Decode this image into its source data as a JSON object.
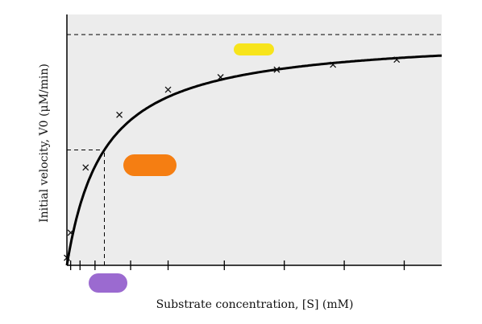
{
  "chart_data": {
    "type": "scatter",
    "title": "",
    "xlabel": "Substrate concentration, [S] (mM)",
    "ylabel": "Initial velocity, V0 (μM/min)",
    "xlim": [
      0,
      1.0
    ],
    "ylim": [
      0,
      1.0
    ],
    "grid": false,
    "legend": "none",
    "x_ticks": [
      0.01,
      0.035,
      0.075,
      0.17,
      0.27,
      0.42,
      0.58,
      0.74,
      0.9
    ],
    "series": [
      {
        "kind": "measured",
        "marker": "x",
        "x": [
          0.0,
          0.01,
          0.05,
          0.14,
          0.27,
          0.41,
          0.56,
          0.71,
          0.88
        ],
        "y": [
          0.03,
          0.13,
          0.39,
          0.6,
          0.7,
          0.75,
          0.78,
          0.8,
          0.82
        ]
      },
      {
        "kind": "fit",
        "model": "michaelis-menten",
        "vmax": 0.92,
        "km": 0.1
      }
    ],
    "reference_lines": [
      {
        "orientation": "horizontal",
        "y": 0.92,
        "style": "dashed"
      },
      {
        "orientation": "horizontal",
        "y": 0.46,
        "style": "dashed",
        "x_end": 0.1
      },
      {
        "orientation": "vertical",
        "x": 0.1,
        "style": "dashed",
        "y_end": 0.46
      }
    ],
    "redactions": [
      {
        "color": "#f7e41b",
        "near": "vmax-label"
      },
      {
        "color": "#f57e12",
        "near": "half-vmax-label"
      },
      {
        "color": "#9b6ad0",
        "near": "km-label"
      }
    ],
    "colors": {
      "plot_background": "#ececec",
      "curve": "#000000"
    }
  }
}
